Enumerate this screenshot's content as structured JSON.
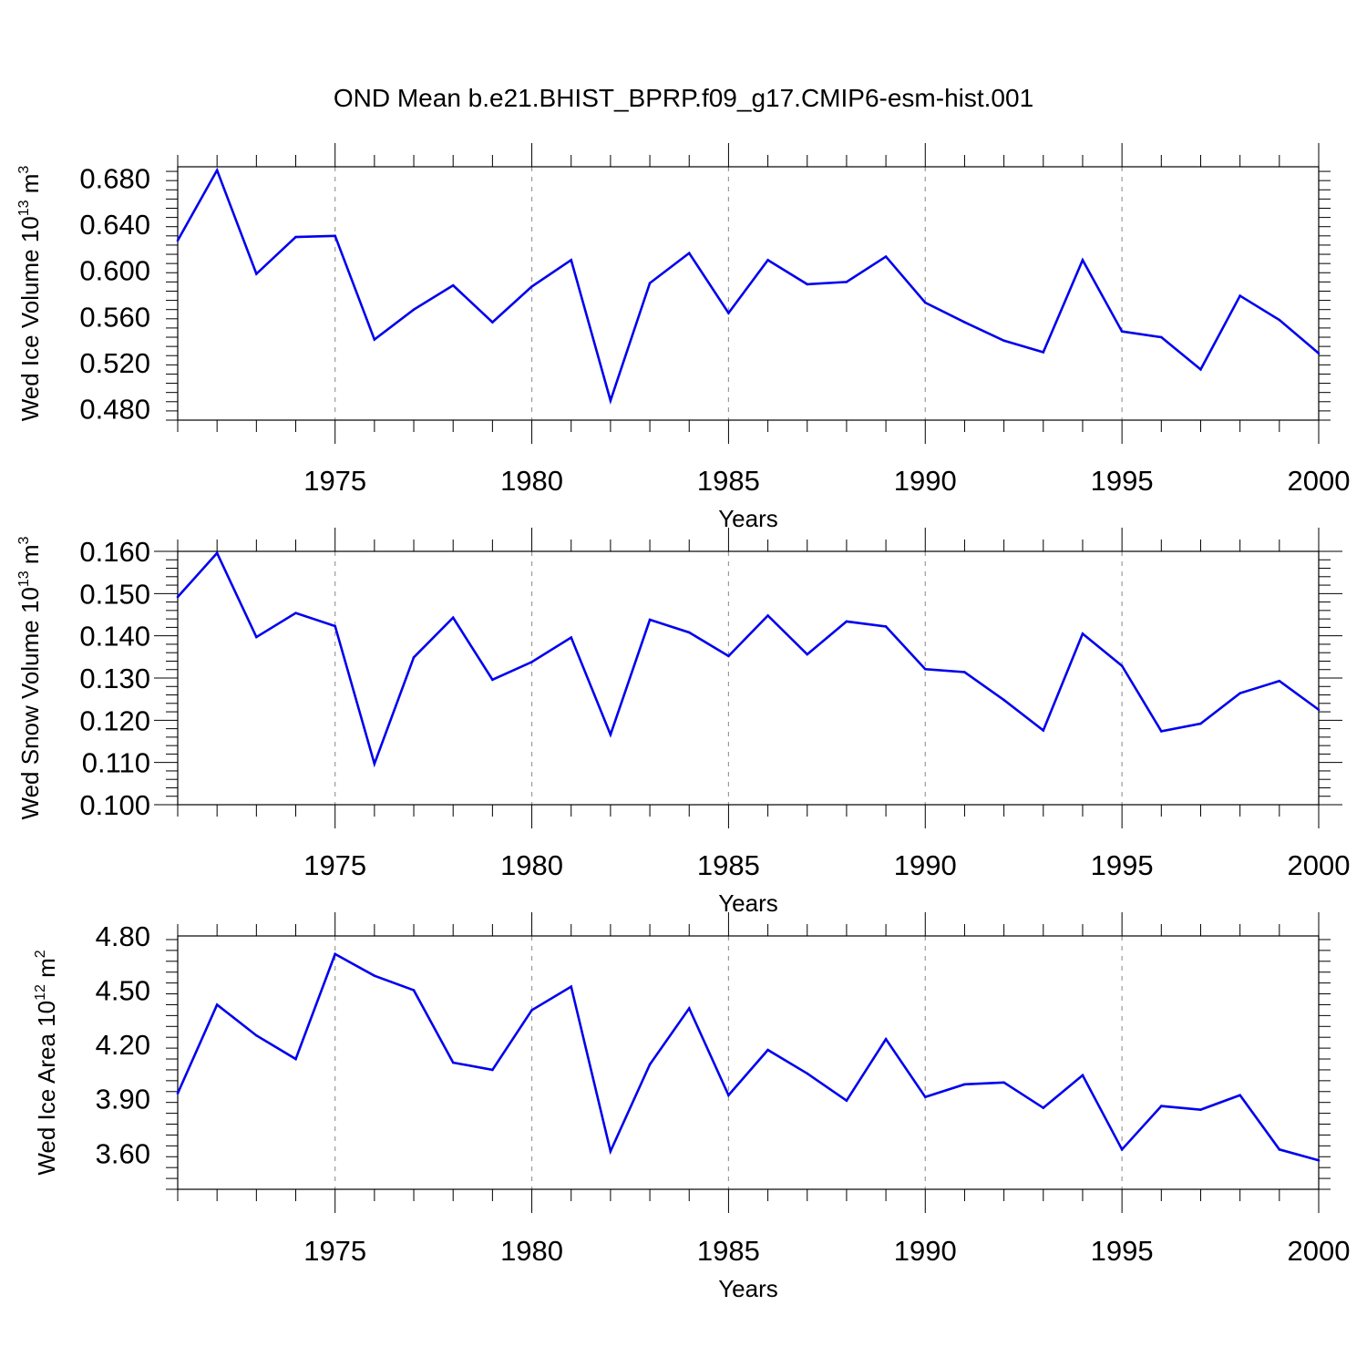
{
  "title": "OND Mean b.e21.BHIST_BPRP.f09_g17.CMIP6-esm-hist.001",
  "chart_data": [
    {
      "type": "line",
      "xlabel": "Years",
      "ylabel": {
        "main": "Wed Ice Volume 10",
        "exp": "13",
        "unit": " m",
        "unit_exp": "3"
      },
      "xlim": [
        1971,
        2000
      ],
      "ylim": [
        0.47,
        0.69
      ],
      "xticks": [
        1975,
        1980,
        1985,
        1990,
        1995,
        2000
      ],
      "xtick_labels": [
        "1975",
        "1980",
        "1985",
        "1990",
        "1995",
        "2000"
      ],
      "yticks": [
        0.48,
        0.52,
        0.56,
        0.6,
        0.64,
        0.68
      ],
      "ytick_labels": [
        "0.480",
        "0.520",
        "0.560",
        "0.600",
        "0.640",
        "0.680"
      ],
      "grid": "vertical-dashed",
      "color": "#0000ee",
      "x": [
        1971,
        1972,
        1973,
        1974,
        1975,
        1976,
        1977,
        1978,
        1979,
        1980,
        1981,
        1982,
        1983,
        1984,
        1985,
        1986,
        1987,
        1988,
        1989,
        1990,
        1991,
        1992,
        1993,
        1994,
        1995,
        1996,
        1997,
        1998,
        1999,
        2000
      ],
      "values": [
        0.626,
        0.687,
        0.597,
        0.629,
        0.63,
        0.54,
        0.566,
        0.587,
        0.555,
        0.586,
        0.609,
        0.487,
        0.589,
        0.615,
        0.563,
        0.609,
        0.588,
        0.59,
        0.612,
        0.572,
        0.555,
        0.539,
        0.529,
        0.609,
        0.547,
        0.542,
        0.514,
        0.578,
        0.557,
        0.528
      ]
    },
    {
      "type": "line",
      "xlabel": "Years",
      "ylabel": {
        "main": "Wed Snow Volume 10",
        "exp": "13",
        "unit": " m",
        "unit_exp": "3"
      },
      "xlim": [
        1971,
        2000
      ],
      "ylim": [
        0.1,
        0.16
      ],
      "xticks": [
        1975,
        1980,
        1985,
        1990,
        1995,
        2000
      ],
      "xtick_labels": [
        "1975",
        "1980",
        "1985",
        "1990",
        "1995",
        "2000"
      ],
      "yticks": [
        0.1,
        0.11,
        0.12,
        0.13,
        0.14,
        0.15,
        0.16
      ],
      "ytick_labels": [
        "0.100",
        "0.110",
        "0.120",
        "0.130",
        "0.140",
        "0.150",
        "0.160"
      ],
      "grid": "vertical-dashed",
      "color": "#0000ee",
      "x": [
        1971,
        1972,
        1973,
        1974,
        1975,
        1976,
        1977,
        1978,
        1979,
        1980,
        1981,
        1982,
        1983,
        1984,
        1985,
        1986,
        1987,
        1988,
        1989,
        1990,
        1991,
        1992,
        1993,
        1994,
        1995,
        1996,
        1997,
        1998,
        1999,
        2000
      ],
      "values": [
        0.1492,
        0.1596,
        0.1397,
        0.1454,
        0.1423,
        0.1097,
        0.1349,
        0.1443,
        0.1296,
        0.1338,
        0.1396,
        0.1166,
        0.1438,
        0.1408,
        0.1352,
        0.1448,
        0.1356,
        0.1434,
        0.1422,
        0.1321,
        0.1314,
        0.1248,
        0.1176,
        0.1405,
        0.1329,
        0.1174,
        0.1192,
        0.1264,
        0.1293,
        0.1225
      ]
    },
    {
      "type": "line",
      "xlabel": "Years",
      "ylabel": {
        "main": "Wed Ice Area 10",
        "exp": "12",
        "unit": " m",
        "unit_exp": "2"
      },
      "xlim": [
        1971,
        2000
      ],
      "ylim": [
        3.4,
        4.8
      ],
      "xticks": [
        1975,
        1980,
        1985,
        1990,
        1995,
        2000
      ],
      "xtick_labels": [
        "1975",
        "1980",
        "1985",
        "1990",
        "1995",
        "2000"
      ],
      "yticks": [
        3.6,
        3.9,
        4.2,
        4.5,
        4.8
      ],
      "ytick_labels": [
        "3.60",
        "3.90",
        "4.20",
        "4.50",
        "4.80"
      ],
      "grid": "vertical-dashed",
      "color": "#0000ee",
      "x": [
        1971,
        1972,
        1973,
        1974,
        1975,
        1976,
        1977,
        1978,
        1979,
        1980,
        1981,
        1982,
        1983,
        1984,
        1985,
        1986,
        1987,
        1988,
        1989,
        1990,
        1991,
        1992,
        1993,
        1994,
        1995,
        1996,
        1997,
        1998,
        1999,
        2000
      ],
      "values": [
        3.93,
        4.42,
        4.25,
        4.12,
        4.7,
        4.58,
        4.5,
        4.1,
        4.06,
        4.39,
        4.52,
        3.61,
        4.09,
        4.4,
        3.92,
        4.17,
        4.04,
        3.89,
        4.23,
        3.91,
        3.98,
        3.99,
        3.85,
        4.03,
        3.62,
        3.86,
        3.84,
        3.92,
        3.62,
        3.56
      ]
    }
  ]
}
